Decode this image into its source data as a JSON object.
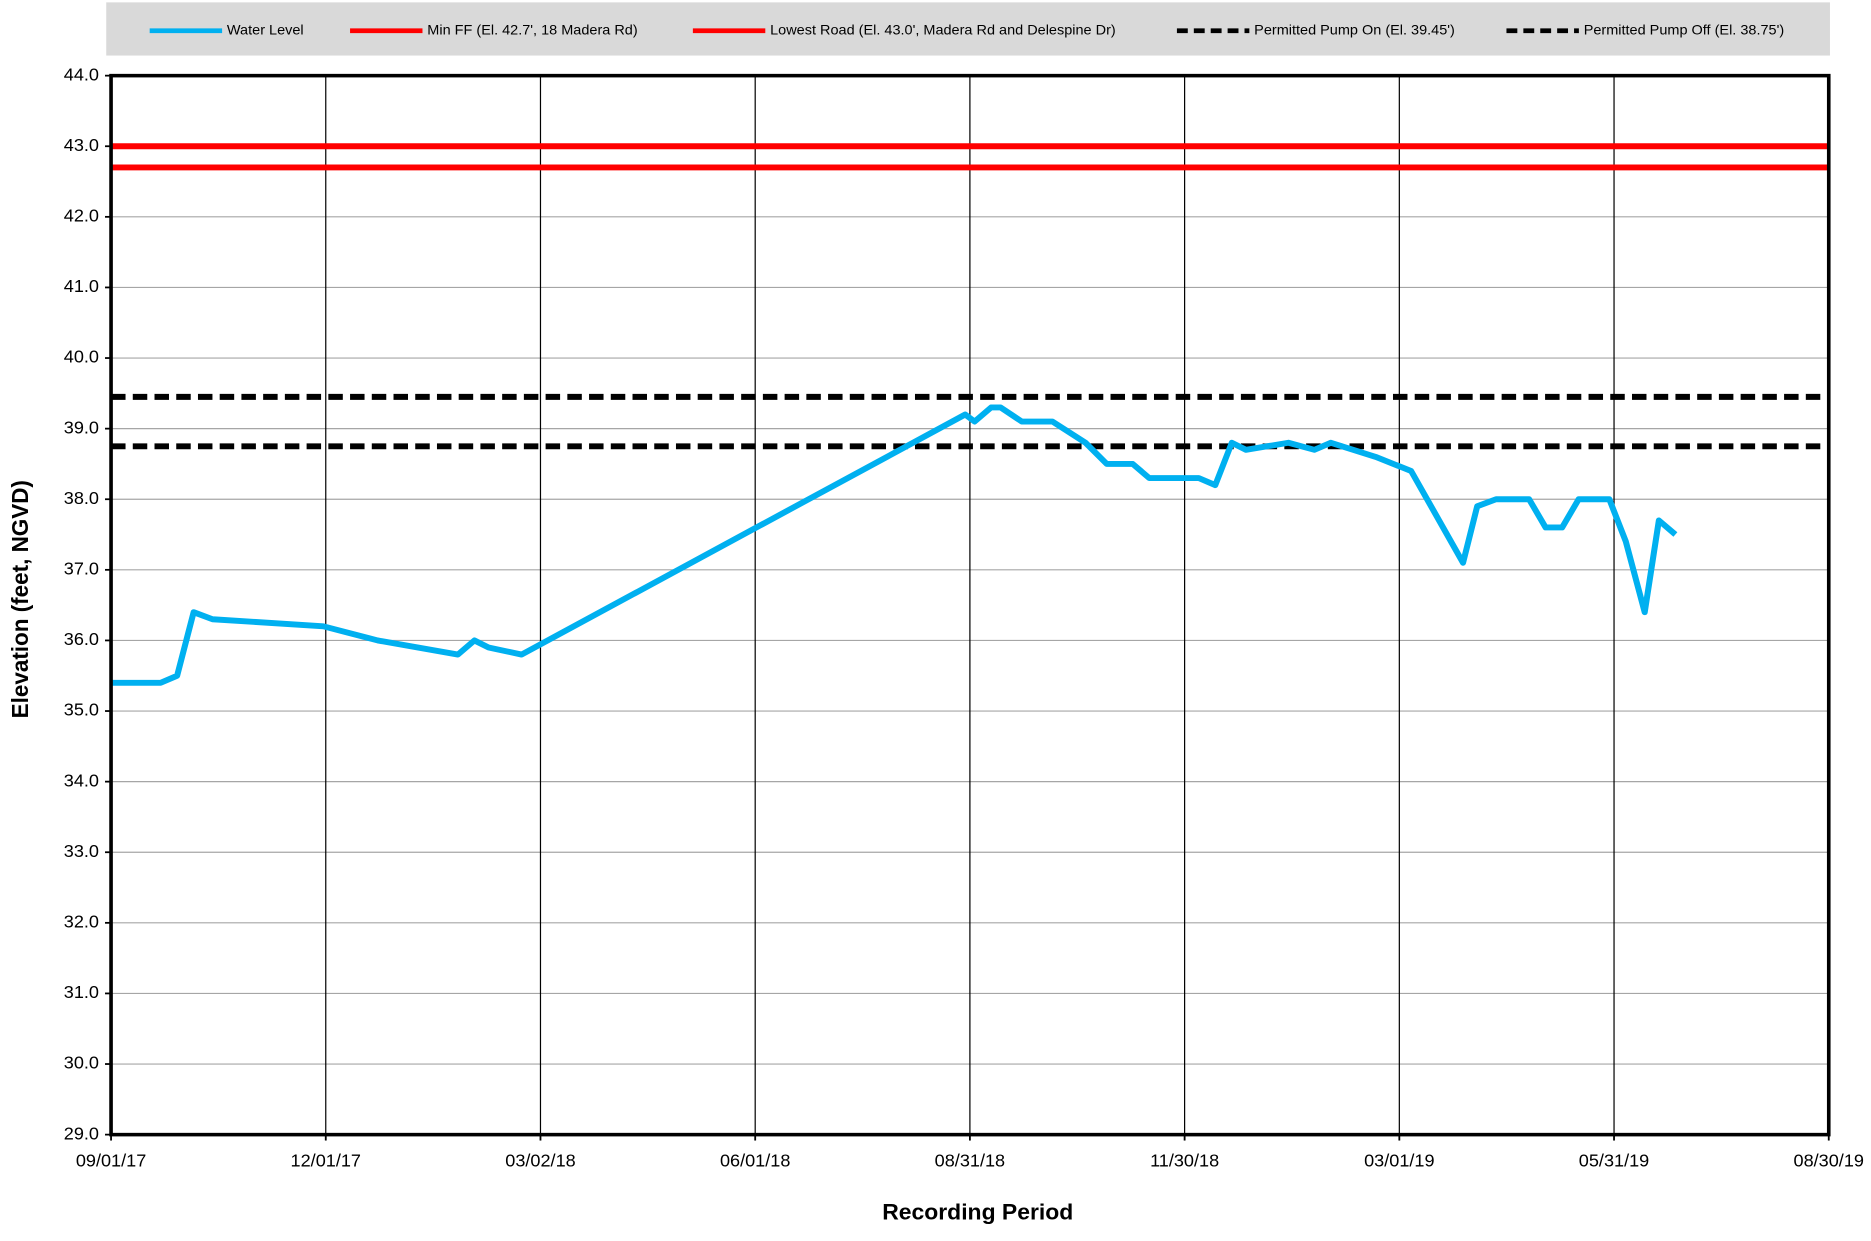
{
  "chart_data": {
    "type": "line",
    "x_label": "Recording Period",
    "y_label": "Elevation (feet, NGVD)",
    "x": [
      "09/01/17",
      "09/22/17",
      "09/29/17",
      "10/06/17",
      "10/14/17",
      "11/30/17",
      "12/23/17",
      "01/26/18",
      "02/02/18",
      "02/08/18",
      "02/22/18",
      "08/29/18",
      "09/02/18",
      "09/09/18",
      "09/13/18",
      "09/22/18",
      "10/05/18",
      "10/19/18",
      "10/28/18",
      "11/08/18",
      "11/15/18",
      "12/06/18",
      "12/13/18",
      "12/20/18",
      "12/26/18",
      "01/13/19",
      "01/24/19",
      "01/31/19",
      "02/19/19",
      "03/06/19",
      "03/28/19",
      "04/03/19",
      "04/11/19",
      "04/25/19",
      "05/02/19",
      "05/09/19",
      "05/16/19",
      "05/29/19",
      "06/05/19",
      "06/13/19",
      "06/19/19",
      "06/26/19"
    ],
    "series": [
      {
        "name": "Water Level",
        "color": "#00b0f0",
        "values": [
          35.4,
          35.4,
          35.5,
          36.4,
          36.3,
          36.2,
          36.0,
          35.8,
          36.0,
          35.9,
          35.8,
          39.2,
          39.1,
          39.3,
          39.3,
          39.1,
          39.1,
          38.8,
          38.5,
          38.5,
          38.3,
          38.3,
          38.2,
          38.8,
          38.7,
          38.8,
          38.7,
          38.8,
          38.6,
          38.4,
          37.1,
          37.9,
          38.0,
          38.0,
          37.6,
          37.6,
          38.0,
          38.0,
          37.4,
          36.4,
          37.7,
          37.5
        ]
      }
    ],
    "hlines": [
      {
        "name": "Min FF (El. 42.7', 18 Madera Rd)",
        "color": "#ff0000",
        "value": 42.7,
        "dashed": false
      },
      {
        "name": "Lowest Road (El. 43.0', Madera Rd and Delespine Dr)",
        "color": "#ff0000",
        "value": 43.0,
        "dashed": false
      },
      {
        "name": "Permitted Pump On (El. 39.45')",
        "color": "#000000",
        "value": 39.45,
        "dashed": true
      },
      {
        "name": "Permitted Pump Off (El. 38.75')",
        "color": "#000000",
        "value": 38.75,
        "dashed": true
      }
    ],
    "xlim": [
      "09/01/17",
      "08/30/19"
    ],
    "xticks": [
      "09/01/17",
      "12/01/17",
      "03/02/18",
      "06/01/18",
      "08/31/18",
      "11/30/18",
      "03/01/19",
      "05/31/19",
      "08/30/19"
    ],
    "ylim": [
      29,
      44
    ],
    "yticks": [
      {
        "value": 29,
        "label": "29.0"
      },
      {
        "value": 30,
        "label": "30.0"
      },
      {
        "value": 31,
        "label": "31.0"
      },
      {
        "value": 32,
        "label": "32.0"
      },
      {
        "value": 33,
        "label": "33.0"
      },
      {
        "value": 34,
        "label": "34.0"
      },
      {
        "value": 35,
        "label": "35.0"
      },
      {
        "value": 36,
        "label": "36.0"
      },
      {
        "value": 37,
        "label": "37.0"
      },
      {
        "value": 38,
        "label": "38.0"
      },
      {
        "value": 39,
        "label": "39.0"
      },
      {
        "value": 40,
        "label": "40.0"
      },
      {
        "value": 41,
        "label": "41.0"
      },
      {
        "value": 42,
        "label": "42.0"
      },
      {
        "value": 43,
        "label": "43.0"
      },
      {
        "value": 44,
        "label": "44.0"
      }
    ],
    "grid": true,
    "legend": "top"
  }
}
